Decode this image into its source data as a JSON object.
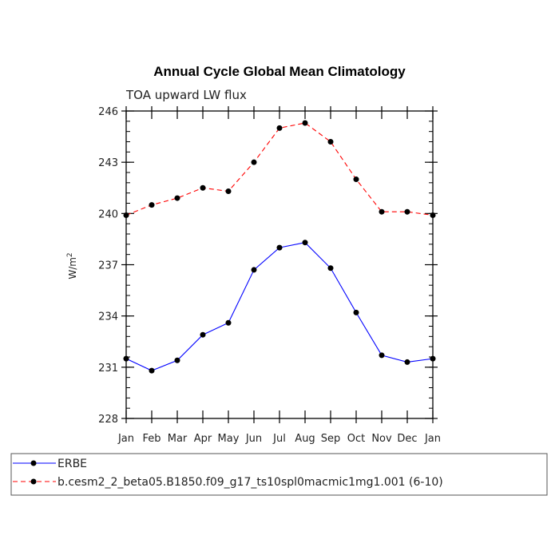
{
  "chart_data": {
    "type": "line",
    "title": "Annual Cycle Global Mean Climatology",
    "subtitle": "TOA upward LW flux",
    "ylabel": "W/m",
    "ylabel_superscript": "2",
    "xlabel": "",
    "categories": [
      "Jan",
      "Feb",
      "Mar",
      "Apr",
      "May",
      "Jun",
      "Jul",
      "Aug",
      "Sep",
      "Oct",
      "Nov",
      "Dec",
      "Jan"
    ],
    "ylim": [
      228,
      246
    ],
    "yticks": [
      228,
      231,
      234,
      237,
      240,
      243,
      246
    ],
    "yticks_minor_step": 0.6,
    "series": [
      {
        "name": "ERBE",
        "color": "#0000ff",
        "dash": "solid",
        "values": [
          231.5,
          230.8,
          231.4,
          232.9,
          233.6,
          236.7,
          238.0,
          238.3,
          236.8,
          234.2,
          231.7,
          231.3,
          231.5
        ]
      },
      {
        "name": "b.cesm2_2_beta05.B1850.f09_g17_ts10spl0macmic1mg1.001 (6-10)",
        "color": "#ff0000",
        "dash": "dashed",
        "values": [
          239.9,
          240.5,
          240.9,
          241.5,
          241.3,
          243.0,
          245.0,
          245.3,
          244.2,
          242.0,
          240.1,
          240.1,
          239.9
        ]
      }
    ],
    "legend_position": "bottom"
  }
}
